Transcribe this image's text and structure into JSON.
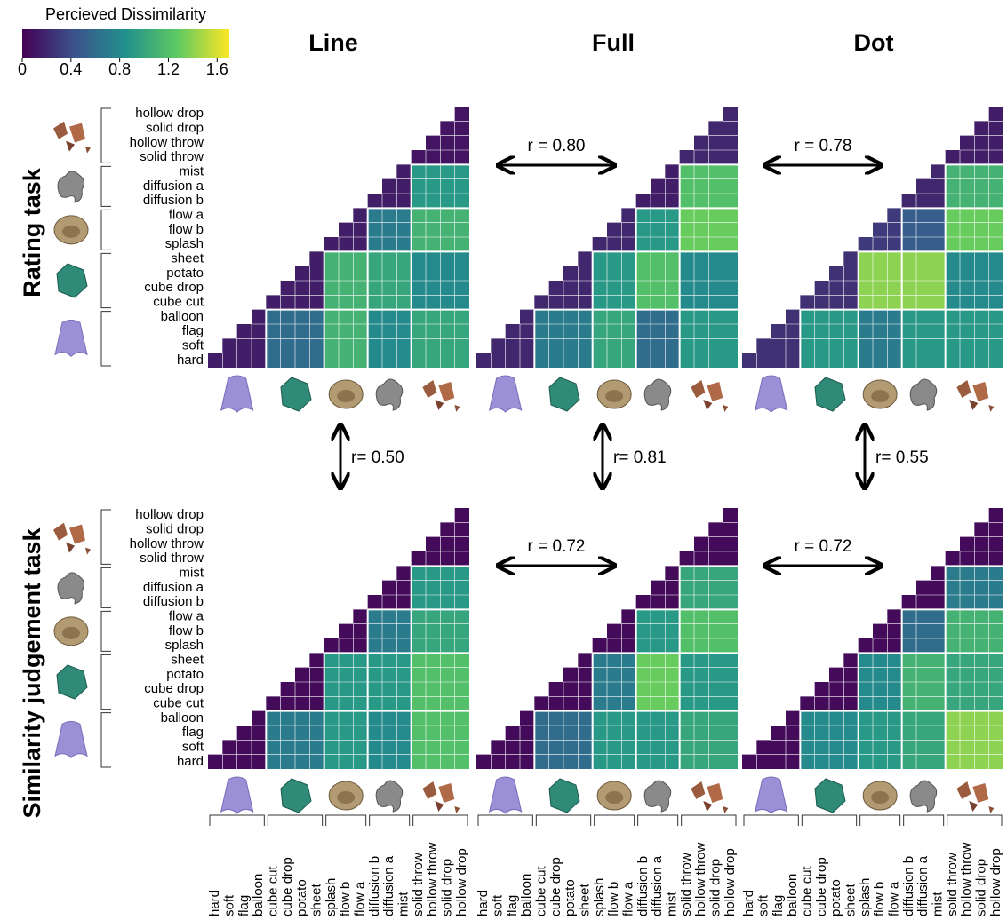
{
  "colorbar": {
    "title": "Percieved Dissimilarity",
    "lim": [
      0,
      1.7
    ],
    "ticks": [
      0,
      0.4,
      0.8,
      1.2,
      1.6
    ]
  },
  "conditions": [
    "Line",
    "Full",
    "Dot"
  ],
  "tasks": [
    "Rating task",
    "Similarity judgement task"
  ],
  "groups": [
    [
      "hard",
      "soft",
      "flag",
      "balloon"
    ],
    [
      "cube cut",
      "cube drop",
      "potato",
      "sheet"
    ],
    [
      "splash",
      "flow b",
      "flow a"
    ],
    [
      "diffusion b",
      "diffusion a",
      "mist"
    ],
    [
      "solid throw",
      "hollow throw",
      "solid drop",
      "hollow drop"
    ]
  ],
  "matrices": [
    [
      [
        [
          0.15,
          0.6,
          1.1,
          0.8,
          1.0
        ],
        [
          0.15,
          1.1,
          1.0,
          0.8
        ],
        [
          0.15,
          0.7,
          1.1
        ],
        [
          0.15,
          0.9
        ],
        [
          0.1
        ]
      ],
      [
        [
          0.2,
          0.7,
          1.0,
          0.6,
          0.9
        ],
        [
          0.2,
          0.9,
          1.2,
          0.8
        ],
        [
          0.2,
          0.9,
          1.3
        ],
        [
          0.15,
          1.2
        ],
        [
          0.2
        ]
      ],
      [
        [
          0.25,
          0.9,
          0.7,
          0.9,
          0.9
        ],
        [
          0.25,
          1.4,
          1.4,
          0.8
        ],
        [
          0.3,
          0.5,
          1.3
        ],
        [
          0.2,
          1.1
        ],
        [
          0.15
        ]
      ]
    ],
    [
      [
        [
          0.05,
          0.7,
          0.9,
          0.8,
          1.2
        ],
        [
          0.05,
          0.9,
          0.9,
          1.2
        ],
        [
          0.05,
          0.7,
          1.0
        ],
        [
          0.05,
          0.9
        ],
        [
          0.05
        ]
      ],
      [
        [
          0.05,
          0.6,
          0.9,
          0.9,
          1.0
        ],
        [
          0.05,
          0.7,
          1.3,
          0.9
        ],
        [
          0.05,
          0.9,
          1.2
        ],
        [
          0.05,
          1.0
        ],
        [
          0.05
        ]
      ],
      [
        [
          0.05,
          0.8,
          0.9,
          1.0,
          1.4
        ],
        [
          0.05,
          0.8,
          1.1,
          1.0
        ],
        [
          0.05,
          0.6,
          1.1
        ],
        [
          0.05,
          0.7
        ],
        [
          0.05
        ]
      ]
    ]
  ],
  "correlations": {
    "across": [
      [
        "r = 0.80",
        "r = 0.78"
      ],
      [
        "r = 0.72",
        "r = 0.72"
      ]
    ],
    "between": [
      "r= 0.50",
      "r= 0.81",
      "r= 0.55"
    ]
  }
}
